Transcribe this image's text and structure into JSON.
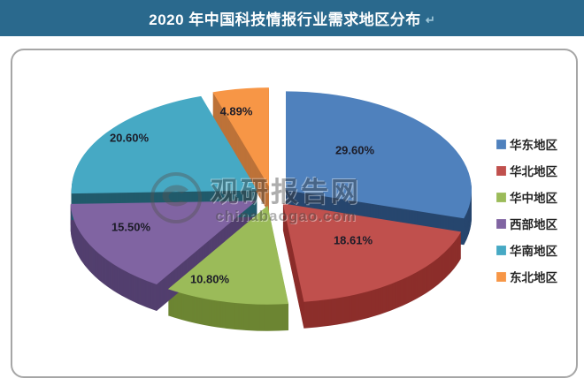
{
  "header": {
    "title": "2020 年中国科技情报行业需求地区分布",
    "suffix_glyph": "↵"
  },
  "colors": {
    "header_bg": "#2a698d",
    "panel_border": "#a6a6a6",
    "label_text": "#1c1c28"
  },
  "chart_data": {
    "type": "pie",
    "title": "2020 年中国科技情报行业需求地区分布",
    "style": "3d-exploded",
    "start_angle_deg": 0,
    "clockwise": true,
    "legend_position": "right",
    "unit": "%",
    "series": [
      {
        "label": "华东地区",
        "value": 29.6,
        "display": "29.60%",
        "color": "#4f81bd",
        "side_color": "#27466e"
      },
      {
        "label": "华北地区",
        "value": 18.61,
        "display": "18.61%",
        "color": "#c0504d",
        "side_color": "#8c2e2b"
      },
      {
        "label": "华中地区",
        "value": 10.8,
        "display": "10.80%",
        "color": "#9bbb59",
        "side_color": "#6c8532"
      },
      {
        "label": "西部地区",
        "value": 15.5,
        "display": "15.50%",
        "color": "#8064a2",
        "side_color": "#523f6e"
      },
      {
        "label": "华南地区",
        "value": 20.6,
        "display": "20.60%",
        "color": "#46a9c4",
        "side_color": "#215a6b"
      },
      {
        "label": "东北地区",
        "value": 4.89,
        "display": "4.89%",
        "color": "#f79646",
        "side_color": "#bd7239"
      }
    ]
  },
  "watermark": {
    "site_name": "观研报告网",
    "site_url": "chinabaogao.com"
  }
}
